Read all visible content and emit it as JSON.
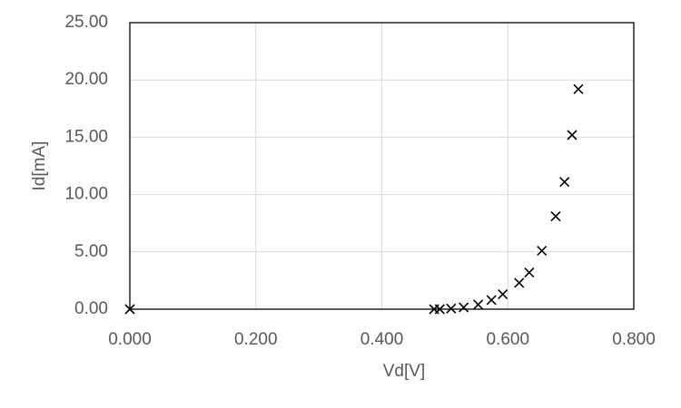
{
  "chart_data": {
    "type": "scatter",
    "x_label": "Vd[V]",
    "y_label": "Id[mA]",
    "series": [
      {
        "color": "#000000",
        "x": [
          0.0,
          0.483,
          0.492,
          0.51,
          0.53,
          0.553,
          0.574,
          0.592,
          0.618,
          0.634,
          0.654,
          0.676,
          0.69,
          0.702,
          0.712
        ],
        "values": [
          0.0,
          0.0,
          0.0,
          0.05,
          0.15,
          0.4,
          0.8,
          1.3,
          2.3,
          3.2,
          5.1,
          8.1,
          11.1,
          15.2,
          19.2
        ]
      }
    ],
    "xlim": [
      0,
      0.8
    ],
    "xticks": [
      {
        "value": 0,
        "label": "0.000"
      },
      {
        "value": 0.2,
        "label": "0.200"
      },
      {
        "value": 0.4,
        "label": "0.400"
      },
      {
        "value": 0.6,
        "label": "0.600"
      },
      {
        "value": 0.8,
        "label": "0.800"
      }
    ],
    "ylim": [
      0,
      25
    ],
    "yticks": [
      {
        "value": 0,
        "label": "0.00"
      },
      {
        "value": 5,
        "label": "5.00"
      },
      {
        "value": 10,
        "label": "10.00"
      },
      {
        "value": 15,
        "label": "15.00"
      },
      {
        "value": 20,
        "label": "20.00"
      },
      {
        "value": 25,
        "label": "25.00"
      }
    ],
    "grid": true
  }
}
